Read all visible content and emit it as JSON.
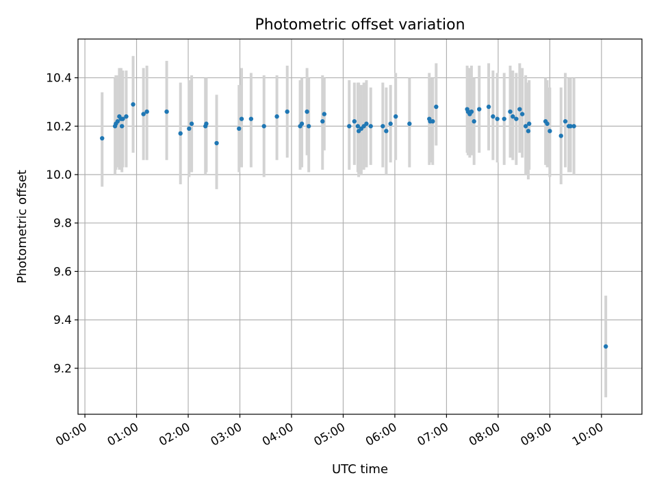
{
  "chart_data": {
    "type": "scatter",
    "title": "Photometric offset variation",
    "xlabel": "UTC time",
    "ylabel": "Photometric offset",
    "xlim": [
      "-0:08",
      "10:47"
    ],
    "ylim": [
      9.01,
      10.56
    ],
    "x_ticks": [
      "00:00",
      "01:00",
      "02:00",
      "03:00",
      "04:00",
      "05:00",
      "06:00",
      "07:00",
      "08:00",
      "09:00",
      "10:00"
    ],
    "y_ticks": [
      "9.2",
      "9.4",
      "9.6",
      "9.8",
      "10.0",
      "10.2",
      "10.4"
    ],
    "grid": true,
    "point_color": "#1f77b4",
    "errorbar_color": "#d3d3d3",
    "series": [
      {
        "x": [
          "0:20",
          "0:35",
          "0:36",
          "0:38",
          "0:40",
          "0:42",
          "0:43",
          "0:44",
          "0:48",
          "0:56",
          "1:08",
          "1:12",
          "1:35",
          "1:51",
          "2:01",
          "2:04",
          "2:20",
          "2:21",
          "2:33",
          "2:59",
          "3:02",
          "3:13",
          "3:28",
          "3:43",
          "3:55",
          "4:10",
          "4:12",
          "4:18",
          "4:20",
          "4:36",
          "4:38",
          "5:07",
          "5:13",
          "5:17",
          "5:18",
          "5:21",
          "5:24",
          "5:27",
          "5:32",
          "5:46",
          "5:50",
          "5:55",
          "6:01",
          "6:17",
          "6:40",
          "6:41",
          "6:44",
          "6:48",
          "7:24",
          "7:25",
          "7:27",
          "7:29",
          "7:32",
          "7:38",
          "7:49",
          "7:54",
          "7:59",
          "8:07",
          "8:14",
          "8:17",
          "8:21",
          "8:25",
          "8:28",
          "8:32",
          "8:35",
          "8:36",
          "8:55",
          "8:57",
          "9:00",
          "9:13",
          "9:18",
          "9:22",
          "9:24",
          "9:28",
          "10:05"
        ],
        "y": [
          10.15,
          10.2,
          10.21,
          10.22,
          10.24,
          10.23,
          10.2,
          10.23,
          10.24,
          10.29,
          10.25,
          10.26,
          10.26,
          10.17,
          10.19,
          10.21,
          10.2,
          10.21,
          10.13,
          10.19,
          10.23,
          10.23,
          10.2,
          10.24,
          10.26,
          10.2,
          10.21,
          10.26,
          10.2,
          10.22,
          10.25,
          10.2,
          10.22,
          10.2,
          10.18,
          10.19,
          10.2,
          10.21,
          10.2,
          10.2,
          10.18,
          10.21,
          10.24,
          10.21,
          10.23,
          10.22,
          10.22,
          10.28,
          10.27,
          10.26,
          10.25,
          10.26,
          10.22,
          10.27,
          10.28,
          10.24,
          10.23,
          10.23,
          10.26,
          10.24,
          10.23,
          10.27,
          10.25,
          10.2,
          10.18,
          10.21,
          10.22,
          10.21,
          10.18,
          10.16,
          10.22,
          10.2,
          10.2,
          10.2,
          9.29
        ],
        "err_low": [
          9.95,
          10.0,
          10.02,
          10.03,
          10.02,
          10.02,
          10.01,
          10.03,
          10.03,
          10.09,
          10.06,
          10.06,
          10.06,
          9.96,
          9.99,
          10.01,
          10.0,
          10.01,
          9.94,
          10.01,
          10.03,
          10.03,
          9.99,
          10.06,
          10.07,
          10.02,
          10.03,
          10.08,
          10.01,
          10.02,
          10.1,
          10.02,
          10.04,
          10.01,
          9.99,
          10.0,
          10.02,
          10.03,
          10.04,
          10.03,
          10.0,
          10.05,
          10.06,
          10.03,
          10.04,
          10.05,
          10.04,
          10.12,
          10.09,
          10.08,
          10.07,
          10.08,
          10.04,
          10.09,
          10.1,
          10.06,
          10.05,
          10.04,
          10.07,
          10.06,
          10.04,
          10.09,
          10.07,
          10.0,
          9.98,
          10.02,
          10.04,
          10.03,
          9.99,
          9.96,
          10.03,
          10.01,
          10.01,
          10.0,
          9.08
        ],
        "err_high": [
          10.34,
          10.4,
          10.41,
          10.41,
          10.44,
          10.44,
          10.39,
          10.43,
          10.43,
          10.49,
          10.44,
          10.45,
          10.47,
          10.38,
          10.39,
          10.41,
          10.4,
          10.4,
          10.33,
          10.37,
          10.44,
          10.42,
          10.41,
          10.41,
          10.45,
          10.39,
          10.4,
          10.44,
          10.4,
          10.41,
          10.4,
          10.39,
          10.38,
          10.38,
          10.38,
          10.37,
          10.38,
          10.39,
          10.36,
          10.38,
          10.36,
          10.37,
          10.42,
          10.4,
          10.42,
          10.4,
          10.4,
          10.46,
          10.45,
          10.44,
          10.44,
          10.45,
          10.4,
          10.45,
          10.46,
          10.43,
          10.42,
          10.42,
          10.45,
          10.43,
          10.42,
          10.46,
          10.44,
          10.41,
          10.38,
          10.39,
          10.4,
          10.39,
          10.36,
          10.36,
          10.42,
          10.4,
          10.4,
          10.4,
          9.5
        ]
      }
    ]
  }
}
